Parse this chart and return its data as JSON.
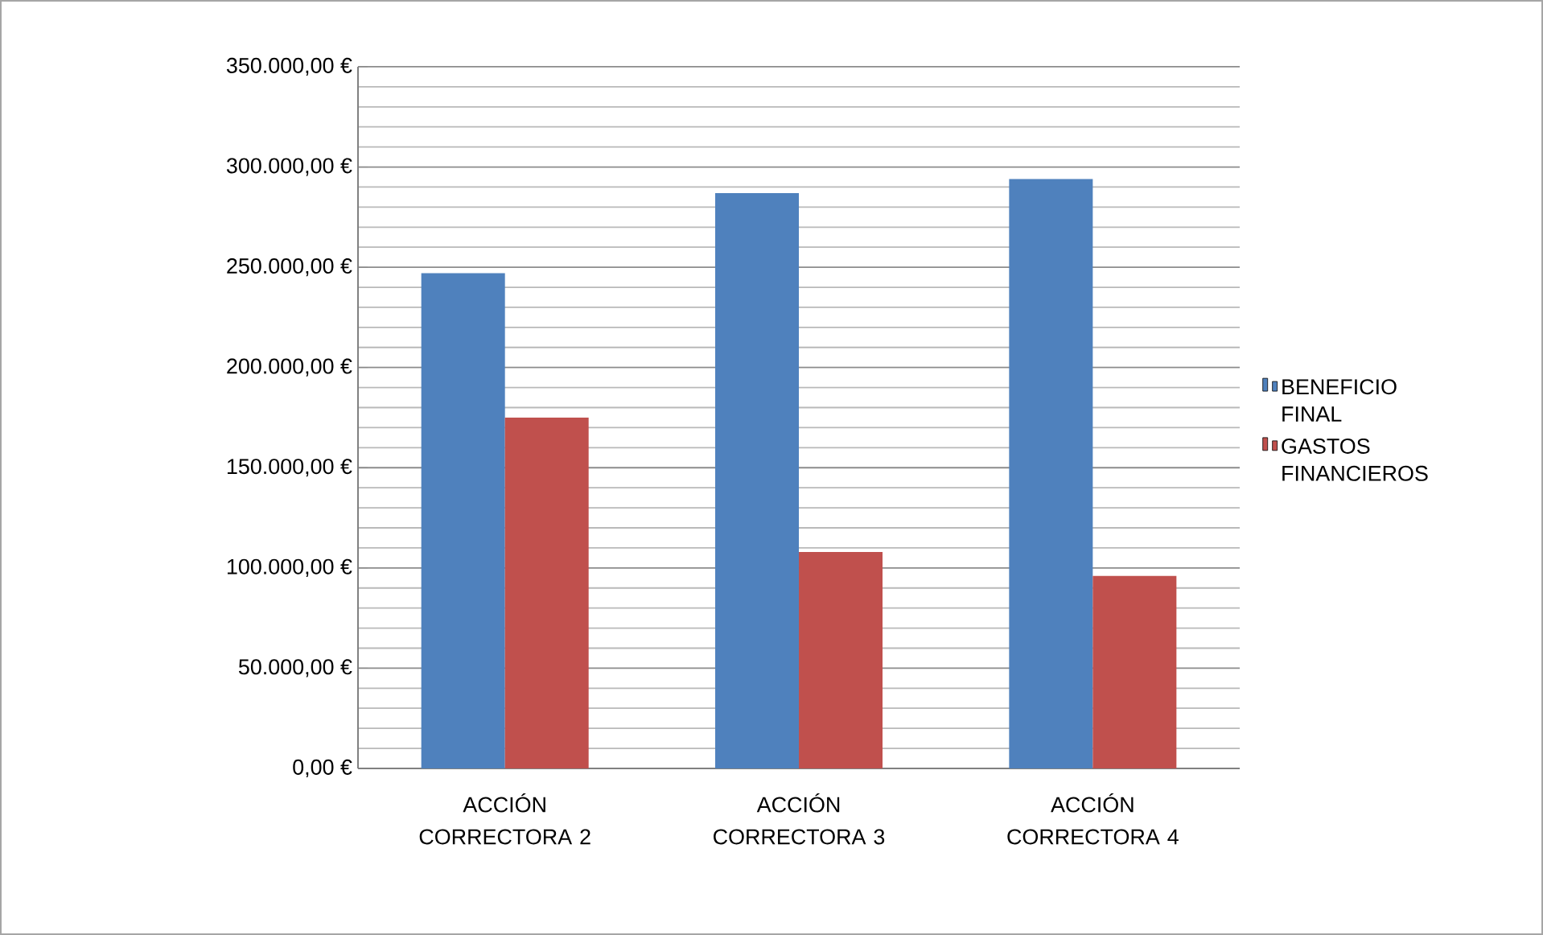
{
  "chart_data": {
    "type": "bar",
    "categories": [
      "ACCIÓN CORRECTORA 2",
      "ACCIÓN CORRECTORA 3",
      "ACCIÓN CORRECTORA 4"
    ],
    "series": [
      {
        "name": "BENEFICIO FINAL",
        "color": "#4f81bd",
        "values": [
          247000,
          287000,
          294000
        ]
      },
      {
        "name": "GASTOS FINANCIEROS",
        "color": "#c0504d",
        "values": [
          175000,
          108000,
          96000
        ]
      }
    ],
    "ylim": [
      0,
      350000
    ],
    "yticks": [
      {
        "value": 0,
        "label": "0,00 €"
      },
      {
        "value": 10000,
        "label": null
      },
      {
        "value": 20000,
        "label": null
      },
      {
        "value": 30000,
        "label": null
      },
      {
        "value": 40000,
        "label": null
      },
      {
        "value": 50000,
        "label": "50.000,00 €"
      },
      {
        "value": 60000,
        "label": null
      },
      {
        "value": 70000,
        "label": null
      },
      {
        "value": 80000,
        "label": null
      },
      {
        "value": 90000,
        "label": null
      },
      {
        "value": 100000,
        "label": "100.000,00 €"
      },
      {
        "value": 110000,
        "label": null
      },
      {
        "value": 120000,
        "label": null
      },
      {
        "value": 130000,
        "label": null
      },
      {
        "value": 140000,
        "label": null
      },
      {
        "value": 150000,
        "label": "150.000,00 €"
      },
      {
        "value": 160000,
        "label": null
      },
      {
        "value": 170000,
        "label": null
      },
      {
        "value": 180000,
        "label": null
      },
      {
        "value": 190000,
        "label": null
      },
      {
        "value": 200000,
        "label": "200.000,00 €"
      },
      {
        "value": 210000,
        "label": null
      },
      {
        "value": 220000,
        "label": null
      },
      {
        "value": 230000,
        "label": null
      },
      {
        "value": 240000,
        "label": null
      },
      {
        "value": 250000,
        "label": "250.000,00 €"
      },
      {
        "value": 260000,
        "label": null
      },
      {
        "value": 270000,
        "label": null
      },
      {
        "value": 280000,
        "label": null
      },
      {
        "value": 290000,
        "label": null
      },
      {
        "value": 300000,
        "label": "300.000,00 €"
      },
      {
        "value": 310000,
        "label": null
      },
      {
        "value": 320000,
        "label": null
      },
      {
        "value": 330000,
        "label": null
      },
      {
        "value": 340000,
        "label": null
      },
      {
        "value": 350000,
        "label": "350.000,00 €"
      }
    ],
    "grid": "y",
    "legend": "right"
  }
}
